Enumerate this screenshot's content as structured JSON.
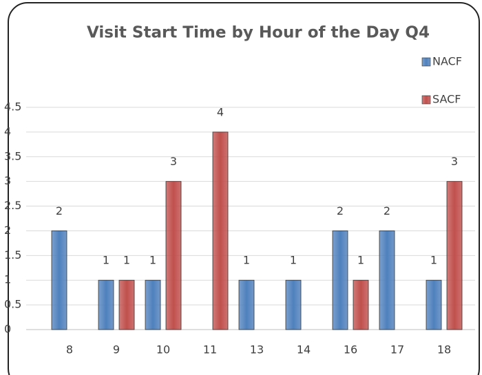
{
  "chart_data": {
    "type": "bar",
    "title": "Visit Start Time by Hour of the Day Q4",
    "categories": [
      "8",
      "9",
      "10",
      "11",
      "13",
      "14",
      "16",
      "17",
      "18"
    ],
    "series": [
      {
        "name": "NACF",
        "color": "#4f81bd",
        "values": [
          2,
          1,
          1,
          null,
          1,
          1,
          2,
          2,
          1
        ]
      },
      {
        "name": "SACF",
        "color": "#c0504d",
        "values": [
          null,
          1,
          3,
          4,
          null,
          null,
          1,
          null,
          3
        ]
      }
    ],
    "ylim": [
      0,
      4.5
    ],
    "yticks": [
      0,
      0.5,
      1,
      1.5,
      2,
      2.5,
      3,
      3.5,
      4,
      4.5
    ],
    "grid": true,
    "legend": "right"
  }
}
